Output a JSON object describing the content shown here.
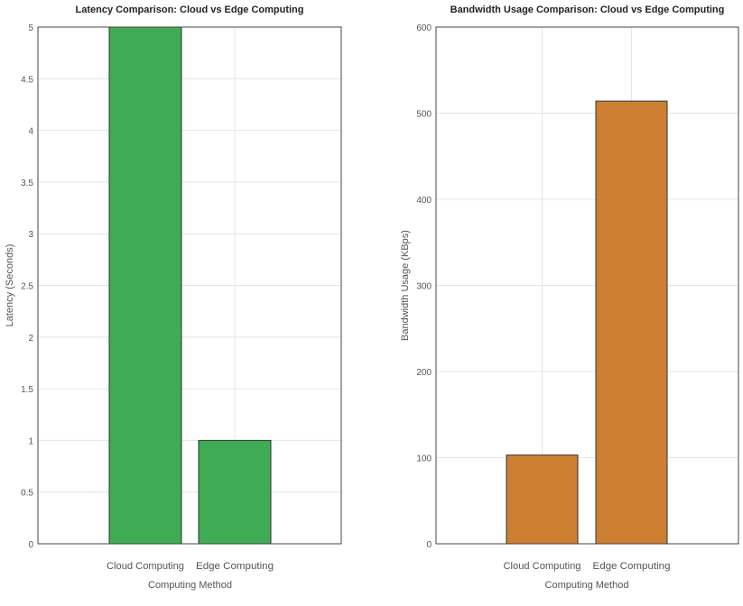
{
  "chart_data": [
    {
      "type": "bar",
      "title": "Latency Comparison: Cloud vs Edge Computing",
      "xlabel": "Computing Method",
      "ylabel": "Latency (Seconds)",
      "categories": [
        "Cloud Computing",
        "Edge Computing"
      ],
      "values": [
        5,
        1
      ],
      "ylim": [
        0,
        5
      ],
      "yticks": [
        "0",
        "0.5",
        "1",
        "1.5",
        "2",
        "2.5",
        "3",
        "3.5",
        "4",
        "4.5",
        "5"
      ],
      "color": "#3fab55",
      "grid": true
    },
    {
      "type": "bar",
      "title": "Bandwidth Usage Comparison: Cloud vs Edge Computing",
      "xlabel": "Computing Method",
      "ylabel": "Bandwidth Usage (KBps)",
      "categories": [
        "Cloud Computing",
        "Edge Computing"
      ],
      "values": [
        103,
        514
      ],
      "ylim": [
        0,
        600
      ],
      "yticks": [
        "0",
        "100",
        "200",
        "300",
        "400",
        "500",
        "600"
      ],
      "color": "#cd7f32",
      "grid": true
    }
  ]
}
